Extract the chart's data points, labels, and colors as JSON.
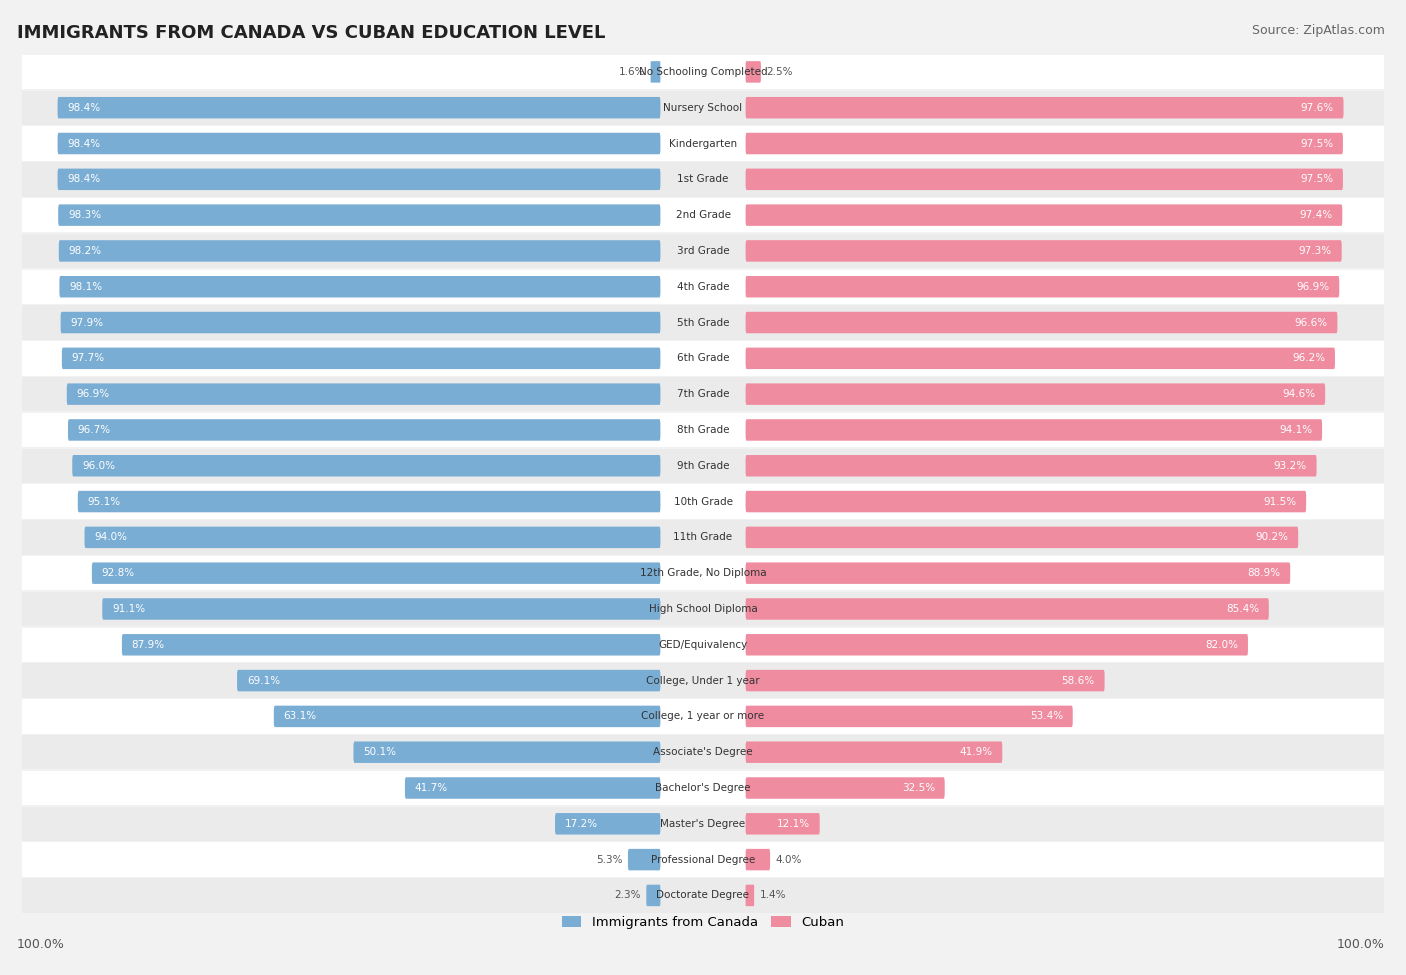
{
  "title": "IMMIGRANTS FROM CANADA VS CUBAN EDUCATION LEVEL",
  "source": "Source: ZipAtlas.com",
  "categories": [
    "No Schooling Completed",
    "Nursery School",
    "Kindergarten",
    "1st Grade",
    "2nd Grade",
    "3rd Grade",
    "4th Grade",
    "5th Grade",
    "6th Grade",
    "7th Grade",
    "8th Grade",
    "9th Grade",
    "10th Grade",
    "11th Grade",
    "12th Grade, No Diploma",
    "High School Diploma",
    "GED/Equivalency",
    "College, Under 1 year",
    "College, 1 year or more",
    "Associate's Degree",
    "Bachelor's Degree",
    "Master's Degree",
    "Professional Degree",
    "Doctorate Degree"
  ],
  "canada_values": [
    1.6,
    98.4,
    98.4,
    98.4,
    98.3,
    98.2,
    98.1,
    97.9,
    97.7,
    96.9,
    96.7,
    96.0,
    95.1,
    94.0,
    92.8,
    91.1,
    87.9,
    69.1,
    63.1,
    50.1,
    41.7,
    17.2,
    5.3,
    2.3
  ],
  "cuban_values": [
    2.5,
    97.6,
    97.5,
    97.5,
    97.4,
    97.3,
    96.9,
    96.6,
    96.2,
    94.6,
    94.1,
    93.2,
    91.5,
    90.2,
    88.9,
    85.4,
    82.0,
    58.6,
    53.4,
    41.9,
    32.5,
    12.1,
    4.0,
    1.4
  ],
  "canada_color": "#7aadd4",
  "cuban_color": "#f08ca0",
  "background_color": "#f2f2f2",
  "row_even_color": "#ffffff",
  "row_odd_color": "#ebebeb",
  "label_color_inside": "#ffffff",
  "label_color_outside": "#555555",
  "legend_canada": "Immigrants from Canada",
  "legend_cuban": "Cuban",
  "axis_label_left": "100.0%",
  "axis_label_right": "100.0%"
}
